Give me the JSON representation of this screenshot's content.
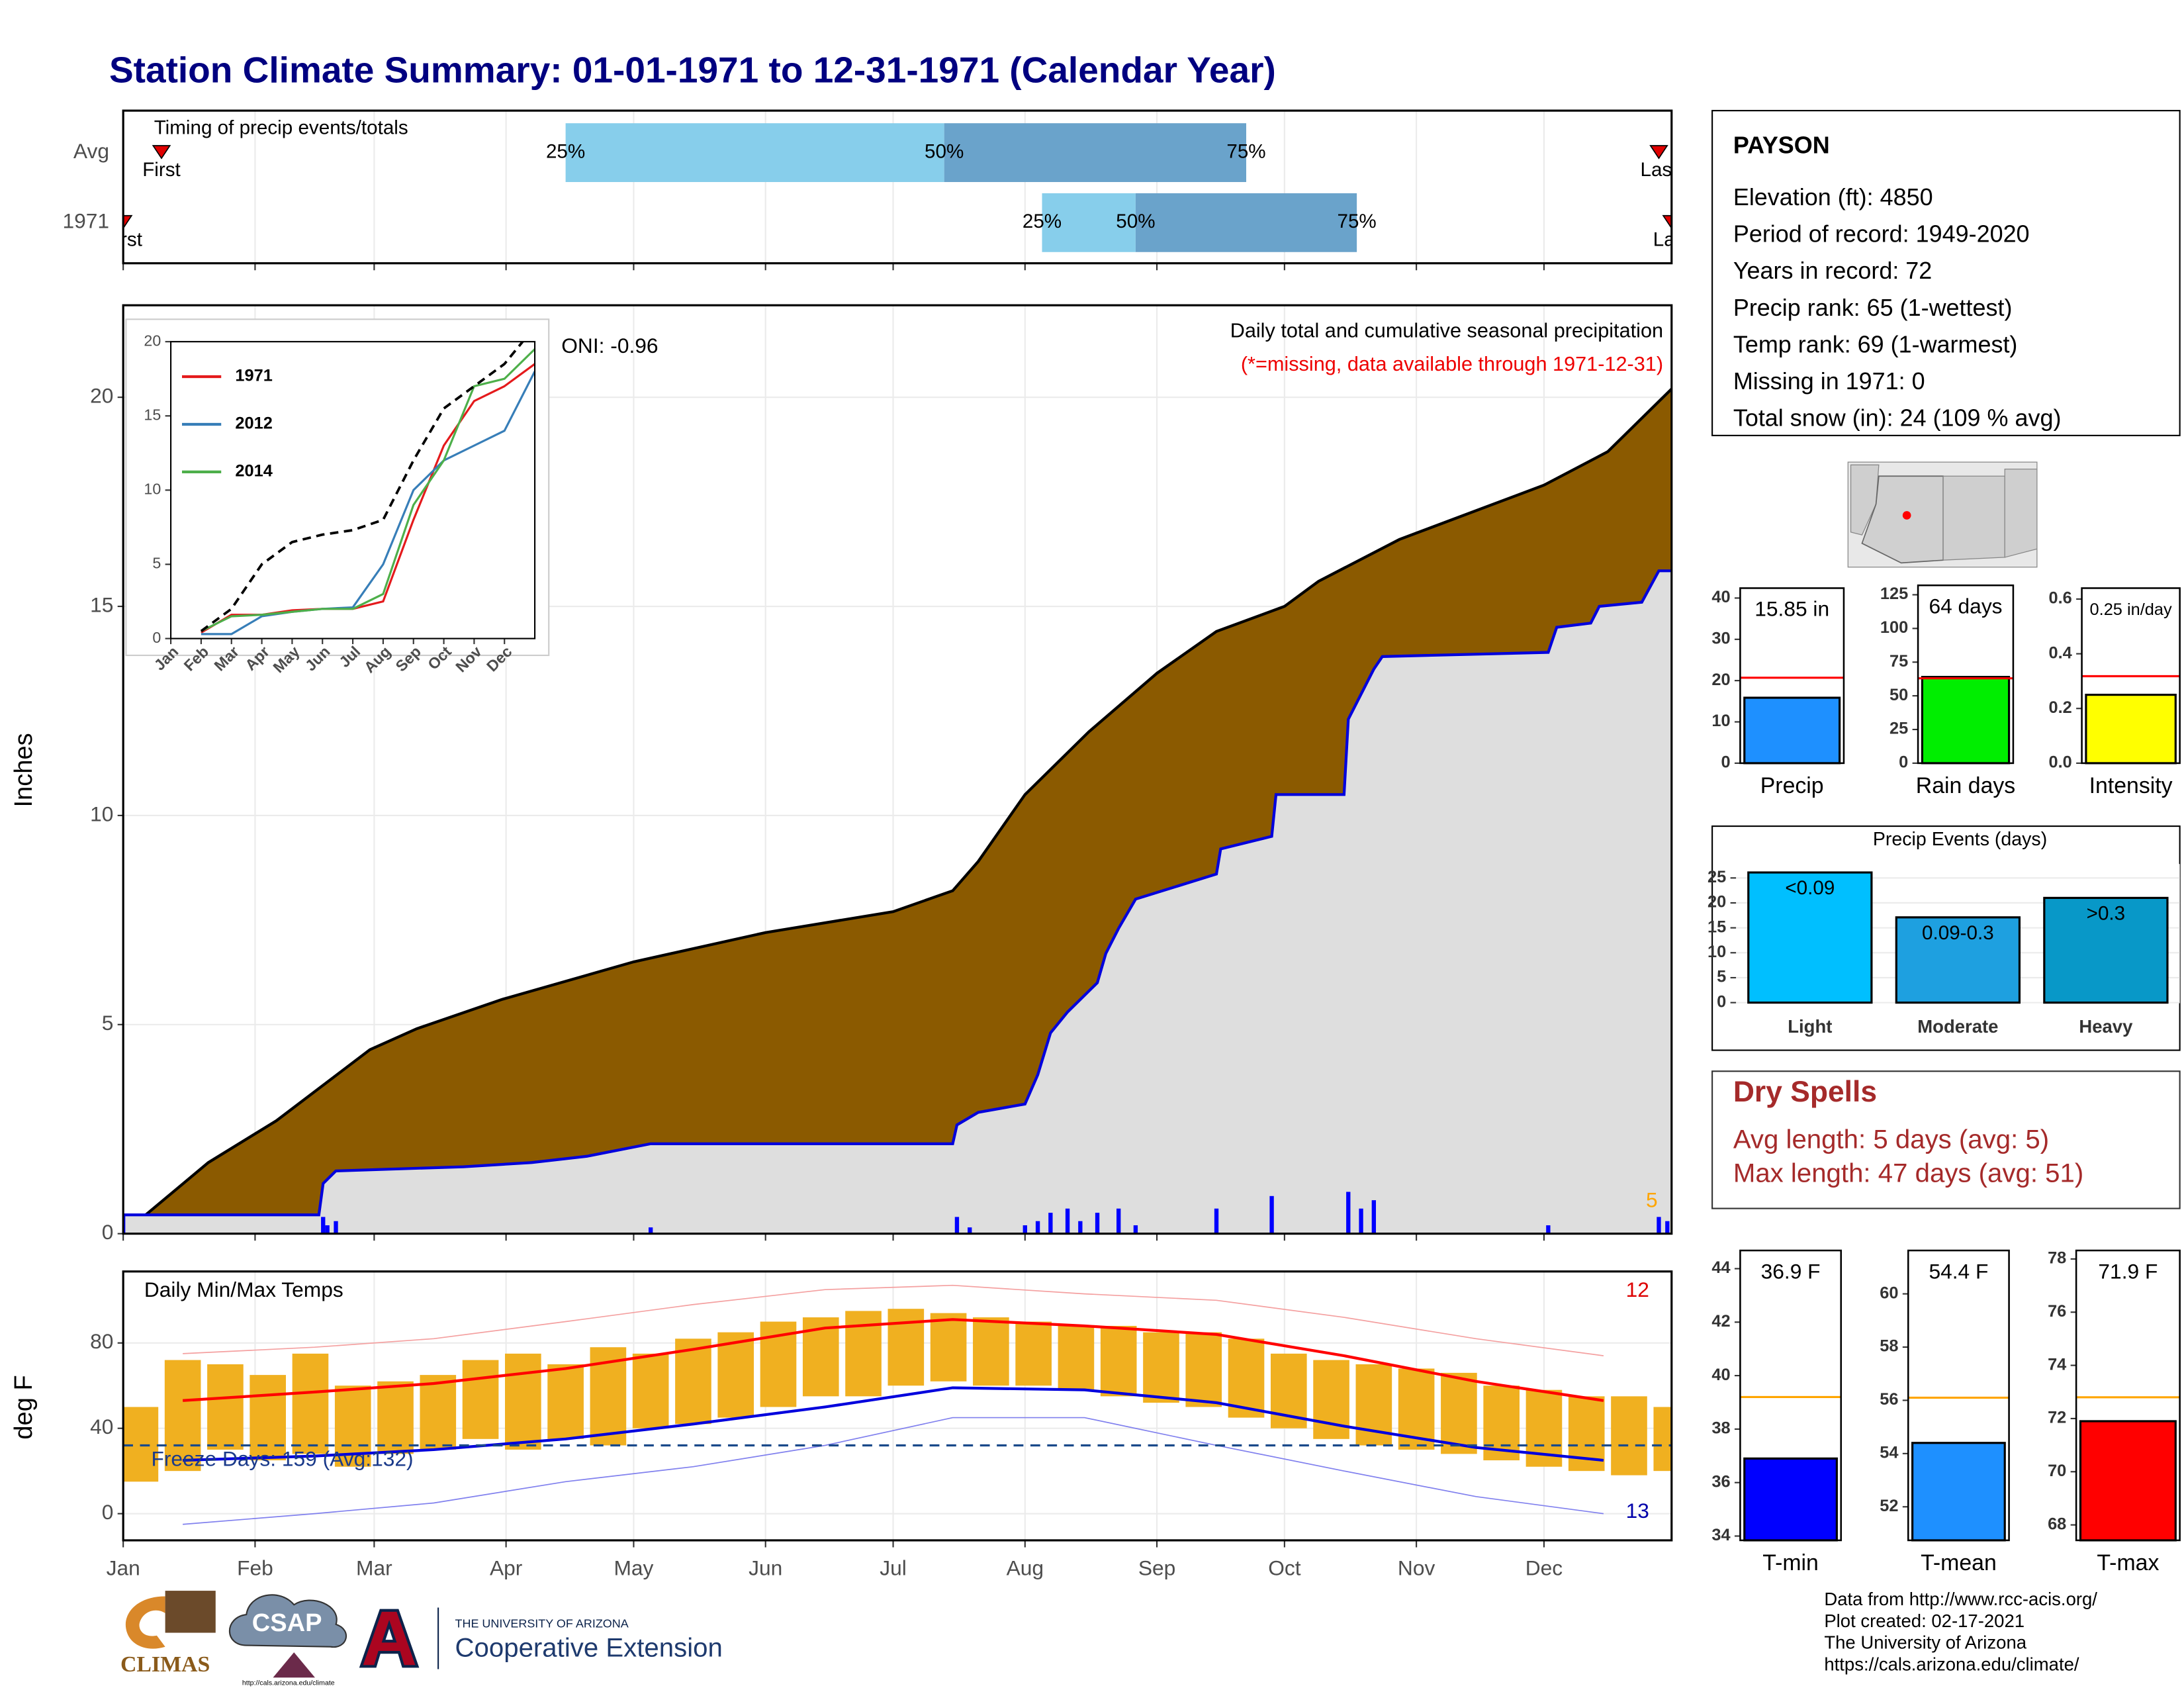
{
  "header": {
    "title": "Station Climate Summary: 01-01-1971 to 12-31-1971 (Calendar Year)"
  },
  "chart_data": [
    {
      "type": "timing",
      "title": "Timing of precip events/totals",
      "categories": [
        "Avg",
        "1971"
      ],
      "first": [
        10,
        1
      ],
      "q25": [
        105,
        217
      ],
      "q50": [
        194,
        239
      ],
      "q75": [
        265,
        291
      ],
      "last": [
        362,
        365
      ],
      "marker_labels": {
        "first": "First",
        "last": "Last",
        "q25": "25%",
        "q50": "50%",
        "q75": "75%"
      },
      "colors": {
        "lower": "#87ceeb",
        "upper": "#6aa3cb",
        "marker": "#e00000"
      },
      "xlim": [
        1,
        365
      ],
      "xticks": [
        1,
        32,
        60,
        91,
        121,
        152,
        182,
        213,
        244,
        274,
        305,
        335
      ],
      "grid": true
    },
    {
      "type": "area",
      "title": "Daily total and cumulative seasonal precipitation",
      "subtitle": "(*=missing, data available through 1971-12-31)",
      "annotation": "ONI: -0.96",
      "rank_label": "5",
      "ylabel": "Inches",
      "xlim": [
        1,
        365
      ],
      "ylim": [
        0,
        22.2
      ],
      "yticks": [
        0,
        5,
        10,
        15,
        20
      ],
      "xticks": [
        1,
        32,
        60,
        91,
        121,
        152,
        182,
        213,
        244,
        274,
        305,
        335
      ],
      "grid": true,
      "series": [
        {
          "color": "#8b5a00",
          "line_color": "#000000",
          "x": [
            1,
            21,
            37,
            59,
            70,
            90,
            121,
            152,
            182,
            196,
            202,
            213,
            228,
            244,
            258,
            274,
            282,
            301,
            335,
            350,
            365
          ],
          "values": [
            0,
            1.7,
            2.7,
            4.4,
            4.9,
            5.6,
            6.5,
            7.2,
            7.7,
            8.2,
            8.9,
            10.5,
            12.0,
            13.4,
            14.4,
            15.0,
            15.6,
            16.6,
            17.9,
            18.7,
            20.2
          ]
        },
        {
          "color": "#dedede",
          "line_color": "#0000dd",
          "x": [
            1,
            47,
            48,
            51,
            81,
            97,
            110,
            125,
            196,
            197,
            202,
            213,
            216,
            219,
            223,
            230,
            232,
            235,
            239,
            258,
            259,
            271,
            272,
            288,
            289,
            295,
            297,
            336,
            338,
            346,
            348,
            358,
            362,
            365
          ],
          "values": [
            0.45,
            0.45,
            1.2,
            1.5,
            1.6,
            1.7,
            1.85,
            2.15,
            2.15,
            2.6,
            2.9,
            3.1,
            3.8,
            4.8,
            5.3,
            6.0,
            6.7,
            7.3,
            8.0,
            8.6,
            9.2,
            9.5,
            10.5,
            10.5,
            12.3,
            13.5,
            13.8,
            13.9,
            14.5,
            14.6,
            15.0,
            15.1,
            15.85,
            15.85
          ]
        }
      ],
      "daily": {
        "color": "#0000ff",
        "x": [
          1,
          48,
          49,
          51,
          125,
          197,
          200,
          213,
          216,
          219,
          223,
          226,
          230,
          235,
          239,
          258,
          271,
          289,
          292,
          295,
          336,
          362,
          364
        ],
        "values": [
          0.45,
          0.4,
          0.2,
          0.3,
          0.15,
          0.4,
          0.15,
          0.2,
          0.3,
          0.5,
          0.6,
          0.3,
          0.5,
          0.6,
          0.2,
          0.6,
          0.9,
          1.0,
          0.6,
          0.8,
          0.2,
          0.4,
          0.3
        ]
      }
    },
    {
      "type": "line",
      "categories": [
        "Jan",
        "Feb",
        "Mar",
        "Apr",
        "May",
        "Jun",
        "Jul",
        "Aug",
        "Sep",
        "Oct",
        "Nov",
        "Dec"
      ],
      "ylim": [
        0,
        20
      ],
      "yticks": [
        0,
        5,
        10,
        15,
        20
      ],
      "series": [
        {
          "name": "1971",
          "color": "#e41a1c",
          "values": [
            0.4,
            1.6,
            1.6,
            1.9,
            2.0,
            2.0,
            2.5,
            8.0,
            13.0,
            16.0,
            17.0,
            18.5
          ]
        },
        {
          "name": "2012",
          "color": "#377eb8",
          "values": [
            0.3,
            0.3,
            1.5,
            1.8,
            2.0,
            2.1,
            5.0,
            10.0,
            12.0,
            13.0,
            14.0,
            18.0
          ]
        },
        {
          "name": "2014",
          "color": "#4daf4a",
          "values": [
            0.5,
            1.5,
            1.6,
            1.8,
            2.0,
            2.0,
            3.0,
            9.0,
            12.0,
            17.0,
            17.5,
            19.5
          ]
        },
        {
          "color": "#000000",
          "dash": true,
          "values": [
            0.5,
            2.0,
            5.0,
            6.5,
            7.0,
            7.3,
            8.0,
            12.0,
            15.5,
            17.0,
            18.5,
            21.0
          ]
        }
      ]
    },
    {
      "type": "range",
      "title": "Daily Min/Max Temps",
      "ylabel": "deg F",
      "annotation": "Freeze Days: 159 (Avg:132)",
      "max_rank_label": "12",
      "min_rank_label": "13",
      "xlim": [
        1,
        365
      ],
      "ylim": [
        -12.5,
        113.5
      ],
      "yticks": [
        0,
        40,
        80
      ],
      "freeze": 32,
      "grid": true,
      "xticks": [
        {
          "value": 1,
          "label": "Jan"
        },
        {
          "value": 32,
          "label": "Feb"
        },
        {
          "value": 60,
          "label": "Mar"
        },
        {
          "value": 91,
          "label": "Apr"
        },
        {
          "value": 121,
          "label": "May"
        },
        {
          "value": 152,
          "label": "Jun"
        },
        {
          "value": 182,
          "label": "Jul"
        },
        {
          "value": 213,
          "label": "Aug"
        },
        {
          "value": 244,
          "label": "Sep"
        },
        {
          "value": 274,
          "label": "Oct"
        },
        {
          "value": 305,
          "label": "Nov"
        },
        {
          "value": 335,
          "label": "Dec"
        }
      ],
      "bars": {
        "color": "#f0b020",
        "x": [
          5,
          15,
          25,
          35,
          45,
          55,
          65,
          75,
          85,
          95,
          105,
          115,
          125,
          135,
          145,
          155,
          165,
          175,
          185,
          195,
          205,
          215,
          225,
          235,
          245,
          255,
          265,
          275,
          285,
          295,
          305,
          315,
          325,
          335,
          345,
          355,
          365
        ],
        "low": [
          15,
          20,
          30,
          25,
          28,
          22,
          28,
          30,
          35,
          30,
          35,
          32,
          40,
          42,
          45,
          50,
          55,
          55,
          60,
          62,
          60,
          60,
          58,
          55,
          52,
          50,
          45,
          40,
          35,
          32,
          30,
          28,
          25,
          22,
          20,
          18,
          20
        ],
        "high": [
          50,
          72,
          70,
          65,
          75,
          60,
          62,
          65,
          72,
          75,
          70,
          78,
          75,
          82,
          85,
          90,
          92,
          95,
          96,
          94,
          92,
          90,
          88,
          88,
          85,
          85,
          82,
          75,
          72,
          70,
          68,
          66,
          60,
          58,
          55,
          55,
          50
        ]
      },
      "series": [
        {
          "color": "#ff0000",
          "width": 2,
          "x": [
            15,
            46,
            74,
            105,
            135,
            166,
            196,
            227,
            258,
            288,
            319,
            349
          ],
          "values": [
            53,
            57,
            61,
            68,
            77,
            87,
            91,
            88,
            84,
            74,
            62,
            53
          ]
        },
        {
          "color": "#0000dd",
          "width": 2,
          "x": [
            15,
            46,
            74,
            105,
            135,
            166,
            196,
            227,
            258,
            288,
            319,
            349
          ],
          "values": [
            25,
            27,
            30,
            35,
            42,
            50,
            59,
            58,
            52,
            41,
            31,
            25
          ]
        },
        {
          "color": "#f4a0a0",
          "width": 0.8,
          "x": [
            15,
            46,
            74,
            105,
            135,
            166,
            196,
            227,
            258,
            288,
            319,
            349
          ],
          "values": [
            75,
            78,
            82,
            90,
            98,
            105,
            107,
            103,
            100,
            92,
            82,
            74
          ]
        },
        {
          "color": "#8080ee",
          "width": 0.8,
          "x": [
            15,
            46,
            74,
            105,
            135,
            166,
            196,
            227,
            258,
            288,
            319,
            349
          ],
          "values": [
            -5,
            0,
            5,
            15,
            22,
            32,
            45,
            45,
            32,
            20,
            8,
            0
          ]
        }
      ]
    },
    {
      "type": "bar",
      "categories": [
        "Precip"
      ],
      "values": [
        15.85
      ],
      "value_labels": [
        "15.85 in"
      ],
      "color": "#1e90ff",
      "ref_line": 20.7,
      "ref_color": "#ff0000",
      "ylim": [
        0,
        42.4
      ],
      "yticks": [
        0,
        10,
        20,
        30,
        40
      ]
    },
    {
      "type": "bar",
      "categories": [
        "Rain days"
      ],
      "values": [
        64
      ],
      "value_labels": [
        "64 days"
      ],
      "color": "#00ee00",
      "ref_line": 63,
      "ref_color": "#ff0000",
      "ylim": [
        0,
        132
      ],
      "yticks": [
        0,
        25,
        50,
        75,
        100,
        125
      ]
    },
    {
      "type": "bar",
      "categories": [
        "Intensity"
      ],
      "values": [
        0.25
      ],
      "value_labels": [
        "0.25 in/day"
      ],
      "color": "#ffff00",
      "ref_line": 0.318,
      "ref_color": "#ff0000",
      "ylim": [
        0,
        0.64
      ],
      "yticks": [
        {
          "value": 0,
          "label": "0.0"
        },
        0.2,
        0.4,
        0.6
      ]
    },
    {
      "type": "events",
      "title": "Precip Events (days)",
      "categories": [
        "Light",
        "Moderate",
        "Heavy"
      ],
      "values": [
        26.1,
        17.1,
        21
      ],
      "bar_labels": [
        "<0.09",
        "0.09-0.3",
        ">0.3"
      ],
      "colors": [
        "#00bfff",
        "#1ea0e0",
        "#0898c8"
      ],
      "ylim": [
        0,
        27.8
      ],
      "yticks": [
        0,
        5,
        10,
        15,
        20,
        25
      ],
      "grid": true
    },
    {
      "type": "bar",
      "categories": [
        "T-min"
      ],
      "values": [
        36.9
      ],
      "value_labels": [
        "36.9 F"
      ],
      "color": "#0000ff",
      "ref_line": 39.2,
      "ref_color": "#ffa500",
      "ylim": [
        33.84,
        44.68
      ],
      "yticks": [
        34,
        36,
        38,
        40,
        42,
        44
      ]
    },
    {
      "type": "bar",
      "categories": [
        "T-mean"
      ],
      "values": [
        54.4
      ],
      "value_labels": [
        "54.4 F"
      ],
      "color": "#1e90ff",
      "ref_line": 56.1,
      "ref_color": "#ffa500",
      "ylim": [
        50.74,
        61.63
      ],
      "yticks": [
        52,
        54,
        56,
        58,
        60
      ]
    },
    {
      "type": "bar",
      "categories": [
        "T-max"
      ],
      "values": [
        71.9
      ],
      "value_labels": [
        "71.9 F"
      ],
      "color": "#ff0000",
      "ref_line": 72.8,
      "ref_color": "#ffa500",
      "ylim": [
        67.42,
        78.32
      ],
      "yticks": [
        68,
        70,
        72,
        74,
        76,
        78
      ]
    }
  ],
  "station": {
    "name": "PAYSON",
    "lines": [
      "Elevation (ft): 4850",
      "Period of record: 1949-2020",
      "Years in record: 72",
      "Precip rank: 65 (1-wettest)",
      "Temp rank: 69 (1-warmest)",
      "Missing in 1971: 0",
      "Total snow (in): 24 (109 % avg)"
    ]
  },
  "dry_spells": {
    "title": "Dry Spells",
    "lines": [
      "Avg length: 5 days (avg: 5)",
      "Max length: 47 days (avg: 51)"
    ]
  },
  "footer": [
    "Data from http://www.rcc-acis.org/",
    "Plot created: 02-17-2021",
    "The University of Arizona",
    "https://cals.arizona.edu/climate/"
  ],
  "logos": {
    "climas": "CLIMAS",
    "csap": "CSAP",
    "csap_url": "http://cals.arizona.edu/climate",
    "ua": "THE UNIVERSITY OF ARIZONA",
    "coop": "Cooperative Extension"
  }
}
